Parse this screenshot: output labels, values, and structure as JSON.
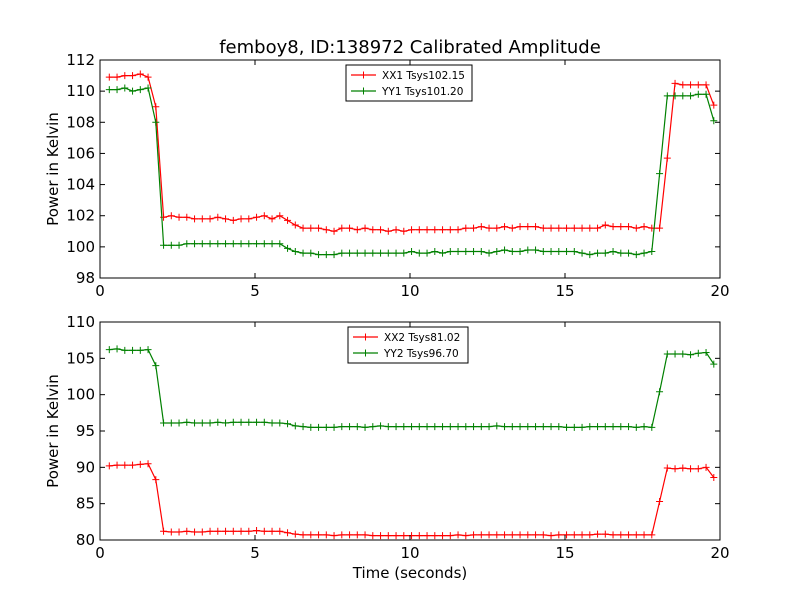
{
  "figure": {
    "title": "femboy8, ID:138972 Calibrated Amplitude"
  },
  "chart_data": [
    {
      "type": "line",
      "title": "femboy8, ID:138972 Calibrated Amplitude",
      "xlabel": "",
      "ylabel": "Power in Kelvin",
      "xlim": [
        0,
        20
      ],
      "ylim": [
        98,
        112
      ],
      "xticks": [
        "0",
        "5",
        "10",
        "15",
        "20"
      ],
      "yticks": [
        "98",
        "100",
        "102",
        "104",
        "106",
        "108",
        "110",
        "112"
      ],
      "grid": false,
      "legend_position": "top-center",
      "x": [
        0.3,
        0.55,
        0.8,
        1.05,
        1.3,
        1.55,
        1.8,
        2.05,
        2.3,
        2.55,
        2.8,
        3.05,
        3.3,
        3.55,
        3.8,
        4.05,
        4.3,
        4.55,
        4.8,
        5.05,
        5.3,
        5.55,
        5.8,
        6.05,
        6.3,
        6.55,
        6.8,
        7.05,
        7.3,
        7.55,
        7.8,
        8.05,
        8.3,
        8.55,
        8.8,
        9.05,
        9.3,
        9.55,
        9.8,
        10.05,
        10.3,
        10.55,
        10.8,
        11.05,
        11.3,
        11.55,
        11.8,
        12.05,
        12.3,
        12.55,
        12.8,
        13.05,
        13.3,
        13.55,
        13.8,
        14.05,
        14.3,
        14.55,
        14.8,
        15.05,
        15.3,
        15.55,
        15.8,
        16.05,
        16.3,
        16.55,
        16.8,
        17.05,
        17.3,
        17.55,
        17.8,
        18.05,
        18.3,
        18.55,
        18.8,
        19.05,
        19.3,
        19.55,
        19.8
      ],
      "series": [
        {
          "name": "XX1 Tsys102.15",
          "color": "#ff0000",
          "values": [
            110.9,
            110.9,
            111.0,
            111.0,
            111.1,
            110.9,
            109.0,
            101.9,
            102.0,
            101.9,
            101.9,
            101.8,
            101.8,
            101.8,
            101.9,
            101.8,
            101.7,
            101.8,
            101.8,
            101.9,
            102.0,
            101.8,
            102.0,
            101.7,
            101.4,
            101.2,
            101.2,
            101.2,
            101.1,
            101.0,
            101.2,
            101.2,
            101.1,
            101.2,
            101.1,
            101.1,
            101.0,
            101.1,
            101.0,
            101.1,
            101.1,
            101.1,
            101.1,
            101.1,
            101.1,
            101.1,
            101.2,
            101.2,
            101.3,
            101.2,
            101.2,
            101.3,
            101.2,
            101.3,
            101.3,
            101.3,
            101.2,
            101.2,
            101.2,
            101.2,
            101.2,
            101.2,
            101.2,
            101.2,
            101.4,
            101.3,
            101.3,
            101.3,
            101.2,
            101.3,
            101.2,
            101.2,
            105.7,
            110.5,
            110.4,
            110.4,
            110.4,
            110.4,
            109.1
          ]
        },
        {
          "name": "YY1 Tsys101.20",
          "color": "#008000",
          "values": [
            110.1,
            110.1,
            110.2,
            110.0,
            110.1,
            110.2,
            108.0,
            100.1,
            100.1,
            100.1,
            100.2,
            100.2,
            100.2,
            100.2,
            100.2,
            100.2,
            100.2,
            100.2,
            100.2,
            100.2,
            100.2,
            100.2,
            100.2,
            99.9,
            99.7,
            99.6,
            99.6,
            99.5,
            99.5,
            99.5,
            99.6,
            99.6,
            99.6,
            99.6,
            99.6,
            99.6,
            99.6,
            99.6,
            99.6,
            99.7,
            99.6,
            99.6,
            99.7,
            99.6,
            99.7,
            99.7,
            99.7,
            99.7,
            99.7,
            99.6,
            99.7,
            99.8,
            99.7,
            99.7,
            99.8,
            99.8,
            99.7,
            99.7,
            99.7,
            99.7,
            99.7,
            99.6,
            99.5,
            99.6,
            99.6,
            99.7,
            99.6,
            99.6,
            99.5,
            99.6,
            99.7,
            104.7,
            109.7,
            109.7,
            109.7,
            109.7,
            109.8,
            109.8,
            108.1
          ]
        }
      ]
    },
    {
      "type": "line",
      "title": "",
      "xlabel": "Time (seconds)",
      "ylabel": "Power in Kelvin",
      "xlim": [
        0,
        20
      ],
      "ylim": [
        80,
        110
      ],
      "xticks": [
        "0",
        "5",
        "10",
        "15",
        "20"
      ],
      "yticks": [
        "80",
        "85",
        "90",
        "95",
        "100",
        "105",
        "110"
      ],
      "grid": false,
      "legend_position": "top-center",
      "x": [
        0.3,
        0.55,
        0.8,
        1.05,
        1.3,
        1.55,
        1.8,
        2.05,
        2.3,
        2.55,
        2.8,
        3.05,
        3.3,
        3.55,
        3.8,
        4.05,
        4.3,
        4.55,
        4.8,
        5.05,
        5.3,
        5.55,
        5.8,
        6.05,
        6.3,
        6.55,
        6.8,
        7.05,
        7.3,
        7.55,
        7.8,
        8.05,
        8.3,
        8.55,
        8.8,
        9.05,
        9.3,
        9.55,
        9.8,
        10.05,
        10.3,
        10.55,
        10.8,
        11.05,
        11.3,
        11.55,
        11.8,
        12.05,
        12.3,
        12.55,
        12.8,
        13.05,
        13.3,
        13.55,
        13.8,
        14.05,
        14.3,
        14.55,
        14.8,
        15.05,
        15.3,
        15.55,
        15.8,
        16.05,
        16.3,
        16.55,
        16.8,
        17.05,
        17.3,
        17.55,
        17.8,
        18.05,
        18.3,
        18.55,
        18.8,
        19.05,
        19.3,
        19.55,
        19.8
      ],
      "series": [
        {
          "name": "XX2 Tsys81.02",
          "color": "#ff0000",
          "values": [
            90.2,
            90.3,
            90.3,
            90.3,
            90.4,
            90.5,
            88.3,
            81.2,
            81.1,
            81.1,
            81.2,
            81.1,
            81.1,
            81.2,
            81.2,
            81.2,
            81.2,
            81.2,
            81.2,
            81.3,
            81.2,
            81.2,
            81.2,
            81.0,
            80.8,
            80.7,
            80.7,
            80.7,
            80.7,
            80.6,
            80.7,
            80.7,
            80.7,
            80.7,
            80.6,
            80.6,
            80.6,
            80.6,
            80.6,
            80.6,
            80.6,
            80.6,
            80.6,
            80.6,
            80.6,
            80.7,
            80.6,
            80.7,
            80.7,
            80.7,
            80.7,
            80.7,
            80.7,
            80.7,
            80.7,
            80.7,
            80.7,
            80.6,
            80.7,
            80.7,
            80.7,
            80.7,
            80.7,
            80.8,
            80.8,
            80.7,
            80.7,
            80.7,
            80.7,
            80.7,
            80.7,
            85.3,
            89.9,
            89.8,
            89.9,
            89.8,
            89.8,
            90.0,
            88.6
          ]
        },
        {
          "name": "YY2 Tsys96.70",
          "color": "#008000",
          "values": [
            106.2,
            106.3,
            106.1,
            106.1,
            106.1,
            106.2,
            104.0,
            96.1,
            96.1,
            96.1,
            96.2,
            96.1,
            96.1,
            96.1,
            96.2,
            96.1,
            96.2,
            96.2,
            96.2,
            96.2,
            96.2,
            96.1,
            96.1,
            96.0,
            95.7,
            95.6,
            95.5,
            95.5,
            95.5,
            95.5,
            95.6,
            95.6,
            95.6,
            95.5,
            95.6,
            95.7,
            95.6,
            95.6,
            95.6,
            95.6,
            95.6,
            95.6,
            95.6,
            95.6,
            95.6,
            95.6,
            95.6,
            95.6,
            95.6,
            95.6,
            95.7,
            95.6,
            95.6,
            95.6,
            95.6,
            95.6,
            95.6,
            95.6,
            95.6,
            95.5,
            95.5,
            95.5,
            95.6,
            95.6,
            95.6,
            95.6,
            95.6,
            95.6,
            95.5,
            95.6,
            95.5,
            100.4,
            105.6,
            105.6,
            105.6,
            105.5,
            105.7,
            105.8,
            104.2
          ]
        }
      ]
    }
  ]
}
